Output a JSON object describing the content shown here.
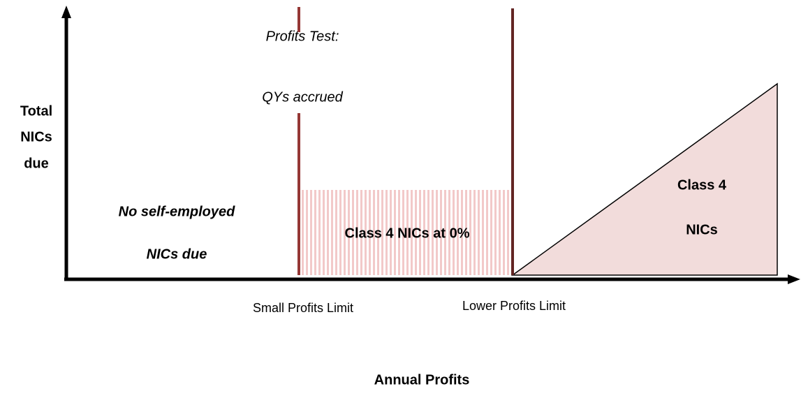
{
  "y_axis_label": [
    "Total",
    "NICs",
    "due"
  ],
  "x_axis_label": "Annual Profits",
  "thresholds": [
    "Small Profits Limit",
    "Lower Profits Limit"
  ],
  "profits_test": [
    "Profits Test:",
    "QYs accrued"
  ],
  "regions": {
    "no_nics": [
      "No self-employed",
      "NICs due"
    ],
    "zero_rate": "Class 4 NICs at 0%",
    "class4": [
      "Class 4",
      "NICs"
    ]
  }
}
